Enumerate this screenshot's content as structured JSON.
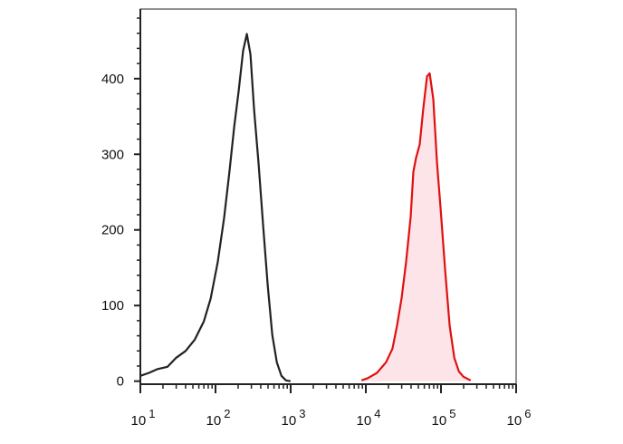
{
  "chart_data": {
    "type": "histogram-overlay",
    "xscale": "log",
    "xlim": [
      10,
      1000000
    ],
    "ylim": [
      -4,
      492
    ],
    "xticks": [
      {
        "value": 10,
        "label": "10",
        "exponent": "1"
      },
      {
        "value": 100,
        "label": "10",
        "exponent": "2"
      },
      {
        "value": 1000,
        "label": "10",
        "exponent": "3"
      },
      {
        "value": 10000,
        "label": "10",
        "exponent": "4"
      },
      {
        "value": 100000,
        "label": "10",
        "exponent": "5"
      },
      {
        "value": 1000000,
        "label": "10",
        "exponent": "6"
      }
    ],
    "yticks": [
      0,
      100,
      200,
      300,
      400
    ],
    "series": [
      {
        "color": "#222222",
        "fill": "none",
        "x": [
          10,
          13,
          17,
          23,
          30,
          40,
          53,
          70,
          86,
          107,
          130,
          153,
          177,
          203,
          233,
          261,
          292,
          326,
          375,
          431,
          495,
          569,
          655,
          753,
          865,
          995
        ],
        "values": [
          7,
          11,
          16,
          19,
          31,
          40,
          55,
          79,
          109,
          157,
          216,
          276,
          336,
          383,
          437,
          459,
          432,
          359,
          287,
          204,
          126,
          61,
          25,
          7,
          1,
          0
        ]
      },
      {
        "color": "#e01010",
        "fill": "#fce4e8",
        "x": [
          8750,
          10640,
          14060,
          18580,
          22590,
          25940,
          29850,
          34280,
          39450,
          42850,
          46560,
          52120,
          58210,
          65160,
          70790,
          79070,
          88510,
          98850,
          113800,
          130600,
          150300,
          172600,
          198600,
          248300
        ],
        "values": [
          1,
          4,
          11,
          25,
          43,
          73,
          109,
          157,
          217,
          277,
          295,
          313,
          361,
          403,
          407,
          373,
          289,
          228,
          145,
          73,
          31,
          13,
          6,
          1
        ]
      }
    ]
  }
}
